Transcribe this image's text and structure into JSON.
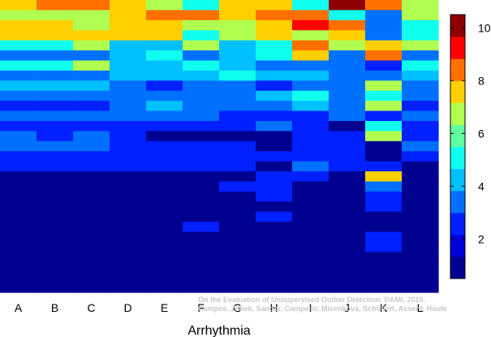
{
  "chart_data": {
    "type": "heatmap",
    "title": "",
    "xlabel": "Arrhythmia",
    "ylabel": "",
    "categories": [
      "A",
      "B",
      "C",
      "D",
      "E",
      "F",
      "G",
      "H",
      "I",
      "J",
      "K",
      "L"
    ],
    "row_count": 29,
    "rows_order": "top-to-bottom",
    "colorscale": {
      "min": 0.5,
      "max": 10.5,
      "ticks": [
        2,
        4,
        6,
        8,
        10
      ],
      "colors": [
        "#000090",
        "#0000d8",
        "#0020ff",
        "#0070ff",
        "#00c0ff",
        "#10ffef",
        "#60ff9f",
        "#b0ff50",
        "#ffd000",
        "#ff7000",
        "#ff0000",
        "#8f0000"
      ]
    },
    "series": [
      {
        "values": [
          7.6,
          8.3,
          8.3,
          7.6,
          6.6,
          5.4,
          7.6,
          7.6,
          5.4,
          10.1,
          8.3,
          6.6
        ]
      },
      {
        "values": [
          6.6,
          6.6,
          6.6,
          7.6,
          8.3,
          8.3,
          7.6,
          8.3,
          8.3,
          5.4,
          3.3,
          6.6
        ]
      },
      {
        "values": [
          7.6,
          7.6,
          6.6,
          7.6,
          7.6,
          6.6,
          6.6,
          7.6,
          9.3,
          8.3,
          3.3,
          5.4
        ]
      },
      {
        "values": [
          7.6,
          7.6,
          7.6,
          7.6,
          7.6,
          5.4,
          6.6,
          7.6,
          6.6,
          7.6,
          3.3,
          5.4
        ]
      },
      {
        "values": [
          5.4,
          5.4,
          6.6,
          4.4,
          4.4,
          6.6,
          4.4,
          5.4,
          8.3,
          6.6,
          7.6,
          6.6
        ]
      },
      {
        "values": [
          3.3,
          3.3,
          3.3,
          4.4,
          5.4,
          3.3,
          4.4,
          5.4,
          7.6,
          3.3,
          8.3,
          3.3
        ]
      },
      {
        "values": [
          5.4,
          5.4,
          6.6,
          4.4,
          4.4,
          5.4,
          4.4,
          3.3,
          3.3,
          3.3,
          2.2,
          5.4
        ]
      },
      {
        "values": [
          3.3,
          3.3,
          3.3,
          4.4,
          4.4,
          4.4,
          5.4,
          4.4,
          4.4,
          3.3,
          3.3,
          4.4
        ]
      },
      {
        "values": [
          4.4,
          4.4,
          4.4,
          3.3,
          2.2,
          3.3,
          3.3,
          2.2,
          3.3,
          3.3,
          6.6,
          3.3
        ]
      },
      {
        "values": [
          3.3,
          3.3,
          3.3,
          3.3,
          3.3,
          3.3,
          3.3,
          4.4,
          5.4,
          3.3,
          5.4,
          3.3
        ]
      },
      {
        "values": [
          2.2,
          2.2,
          2.2,
          3.3,
          4.4,
          3.3,
          3.3,
          3.3,
          4.4,
          3.3,
          6.6,
          2.2
        ]
      },
      {
        "values": [
          3.3,
          3.3,
          3.3,
          3.3,
          3.3,
          3.3,
          2.2,
          2.2,
          2.2,
          3.3,
          2.2,
          3.3
        ]
      },
      {
        "values": [
          2.2,
          2.2,
          2.2,
          2.2,
          2.2,
          2.2,
          2.2,
          3.3,
          2.2,
          1.0,
          5.4,
          2.2
        ]
      },
      {
        "values": [
          3.3,
          2.2,
          3.3,
          2.2,
          1.0,
          1.0,
          1.0,
          1.0,
          2.2,
          2.2,
          6.6,
          2.2
        ]
      },
      {
        "values": [
          3.3,
          3.3,
          3.3,
          2.2,
          2.2,
          2.2,
          2.2,
          1.0,
          2.2,
          2.2,
          1.0,
          3.3
        ]
      },
      {
        "values": [
          2.2,
          2.2,
          2.2,
          2.2,
          2.2,
          2.2,
          2.2,
          2.2,
          2.2,
          2.2,
          1.0,
          2.2
        ]
      },
      {
        "values": [
          2.2,
          2.2,
          2.2,
          2.2,
          2.2,
          2.2,
          2.2,
          1.0,
          3.3,
          2.2,
          2.2,
          1.0
        ]
      },
      {
        "values": [
          1.0,
          1.0,
          1.0,
          1.0,
          1.0,
          1.0,
          1.0,
          2.2,
          2.2,
          1.0,
          7.6,
          1.0
        ]
      },
      {
        "values": [
          1.0,
          1.0,
          1.0,
          1.0,
          1.0,
          1.0,
          2.2,
          2.2,
          1.0,
          1.0,
          3.3,
          1.0
        ]
      },
      {
        "values": [
          1.0,
          1.0,
          1.0,
          1.0,
          1.0,
          1.0,
          1.0,
          2.2,
          1.0,
          1.0,
          2.2,
          1.0
        ]
      },
      {
        "values": [
          1.0,
          1.0,
          1.0,
          1.0,
          1.0,
          1.0,
          1.0,
          1.0,
          1.0,
          1.0,
          2.2,
          1.0
        ]
      },
      {
        "values": [
          1.0,
          1.0,
          1.0,
          1.0,
          1.0,
          1.0,
          1.0,
          2.2,
          1.0,
          1.0,
          1.0,
          1.0
        ]
      },
      {
        "values": [
          1.0,
          1.0,
          1.0,
          1.0,
          1.0,
          2.2,
          1.0,
          1.0,
          1.0,
          1.0,
          1.0,
          1.0
        ]
      },
      {
        "values": [
          1.0,
          1.0,
          1.0,
          1.0,
          1.0,
          1.0,
          1.0,
          1.0,
          1.0,
          1.0,
          2.2,
          1.0
        ]
      },
      {
        "values": [
          1.0,
          1.0,
          1.0,
          1.0,
          1.0,
          1.0,
          1.0,
          1.0,
          1.0,
          1.0,
          2.2,
          1.0
        ]
      },
      {
        "values": [
          1.0,
          1.0,
          1.0,
          1.0,
          1.0,
          1.0,
          1.0,
          1.0,
          1.0,
          1.0,
          1.0,
          1.0
        ]
      },
      {
        "values": [
          1.0,
          1.0,
          1.0,
          1.0,
          1.0,
          1.0,
          1.0,
          1.0,
          1.0,
          1.0,
          1.0,
          1.0
        ]
      },
      {
        "values": [
          1.0,
          1.0,
          1.0,
          1.0,
          1.0,
          1.0,
          1.0,
          1.0,
          1.0,
          1.0,
          1.0,
          1.0
        ]
      },
      {
        "values": [
          1.0,
          1.0,
          1.0,
          1.0,
          1.0,
          1.0,
          1.0,
          1.0,
          1.0,
          1.0,
          1.0,
          1.0
        ]
      }
    ]
  },
  "watermark": {
    "line1": "On the Evaluation of Unsupervised Outlier Detection. DAMI, 2015.",
    "line2": "Campos, Zimek, Sander, Campello, Micenková, Schubert, Assent, Houle"
  }
}
